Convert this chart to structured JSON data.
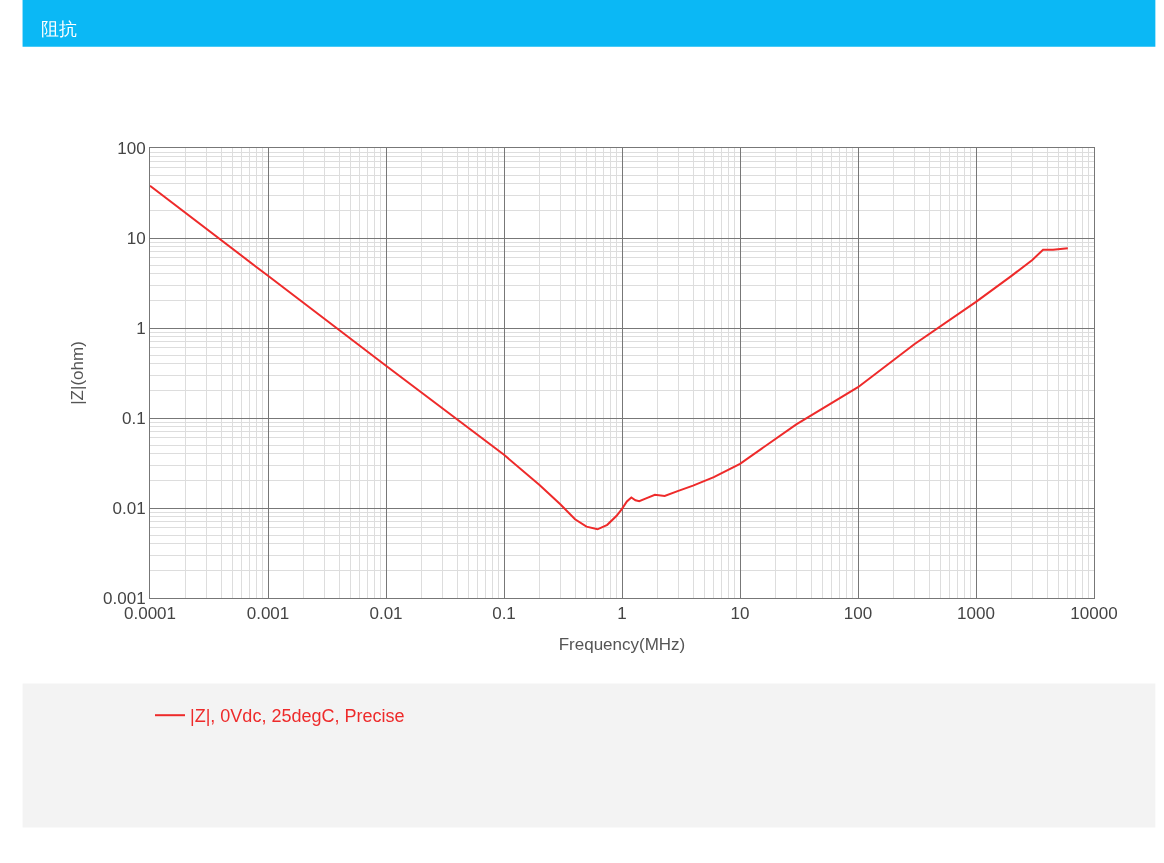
{
  "chart_data": {
    "type": "line",
    "title": "阻抗",
    "xlabel": "Frequency(MHz)",
    "ylabel": "|Z|(ohm)",
    "log": "xy",
    "grid": true,
    "legend": "bottom",
    "marker": "none",
    "line_style": "solid",
    "xlim": [
      0.0001,
      10000
    ],
    "xticks": [
      0.0001,
      0.001,
      0.01,
      0.1,
      1,
      10,
      100,
      1000,
      10000
    ],
    "ylim": [
      0.001,
      100
    ],
    "yticks": [
      0.001,
      0.01,
      0.1,
      1,
      10,
      100
    ],
    "series": [
      {
        "name": "|Z|, 0Vdc, 25degC, Precise",
        "color": "#ee2a2a",
        "x": [
          0.0001,
          0.001,
          0.01,
          0.1,
          0.2,
          0.3,
          0.4,
          0.5,
          0.62,
          0.75,
          0.9,
          1,
          1.1,
          1.2,
          1.3,
          1.4,
          1.6,
          1.9,
          2.3,
          3,
          4,
          6,
          10,
          30,
          100,
          300,
          1000,
          2000,
          3000,
          3700,
          4500,
          6000
        ],
        "values": [
          38,
          3.8,
          0.38,
          0.039,
          0.018,
          0.011,
          0.0075,
          0.0062,
          0.0058,
          0.0065,
          0.0082,
          0.0098,
          0.0118,
          0.0131,
          0.0122,
          0.0119,
          0.0128,
          0.014,
          0.0136,
          0.0155,
          0.0177,
          0.022,
          0.031,
          0.085,
          0.22,
          0.66,
          1.95,
          3.8,
          5.7,
          7.4,
          7.4,
          7.7
        ]
      }
    ]
  }
}
